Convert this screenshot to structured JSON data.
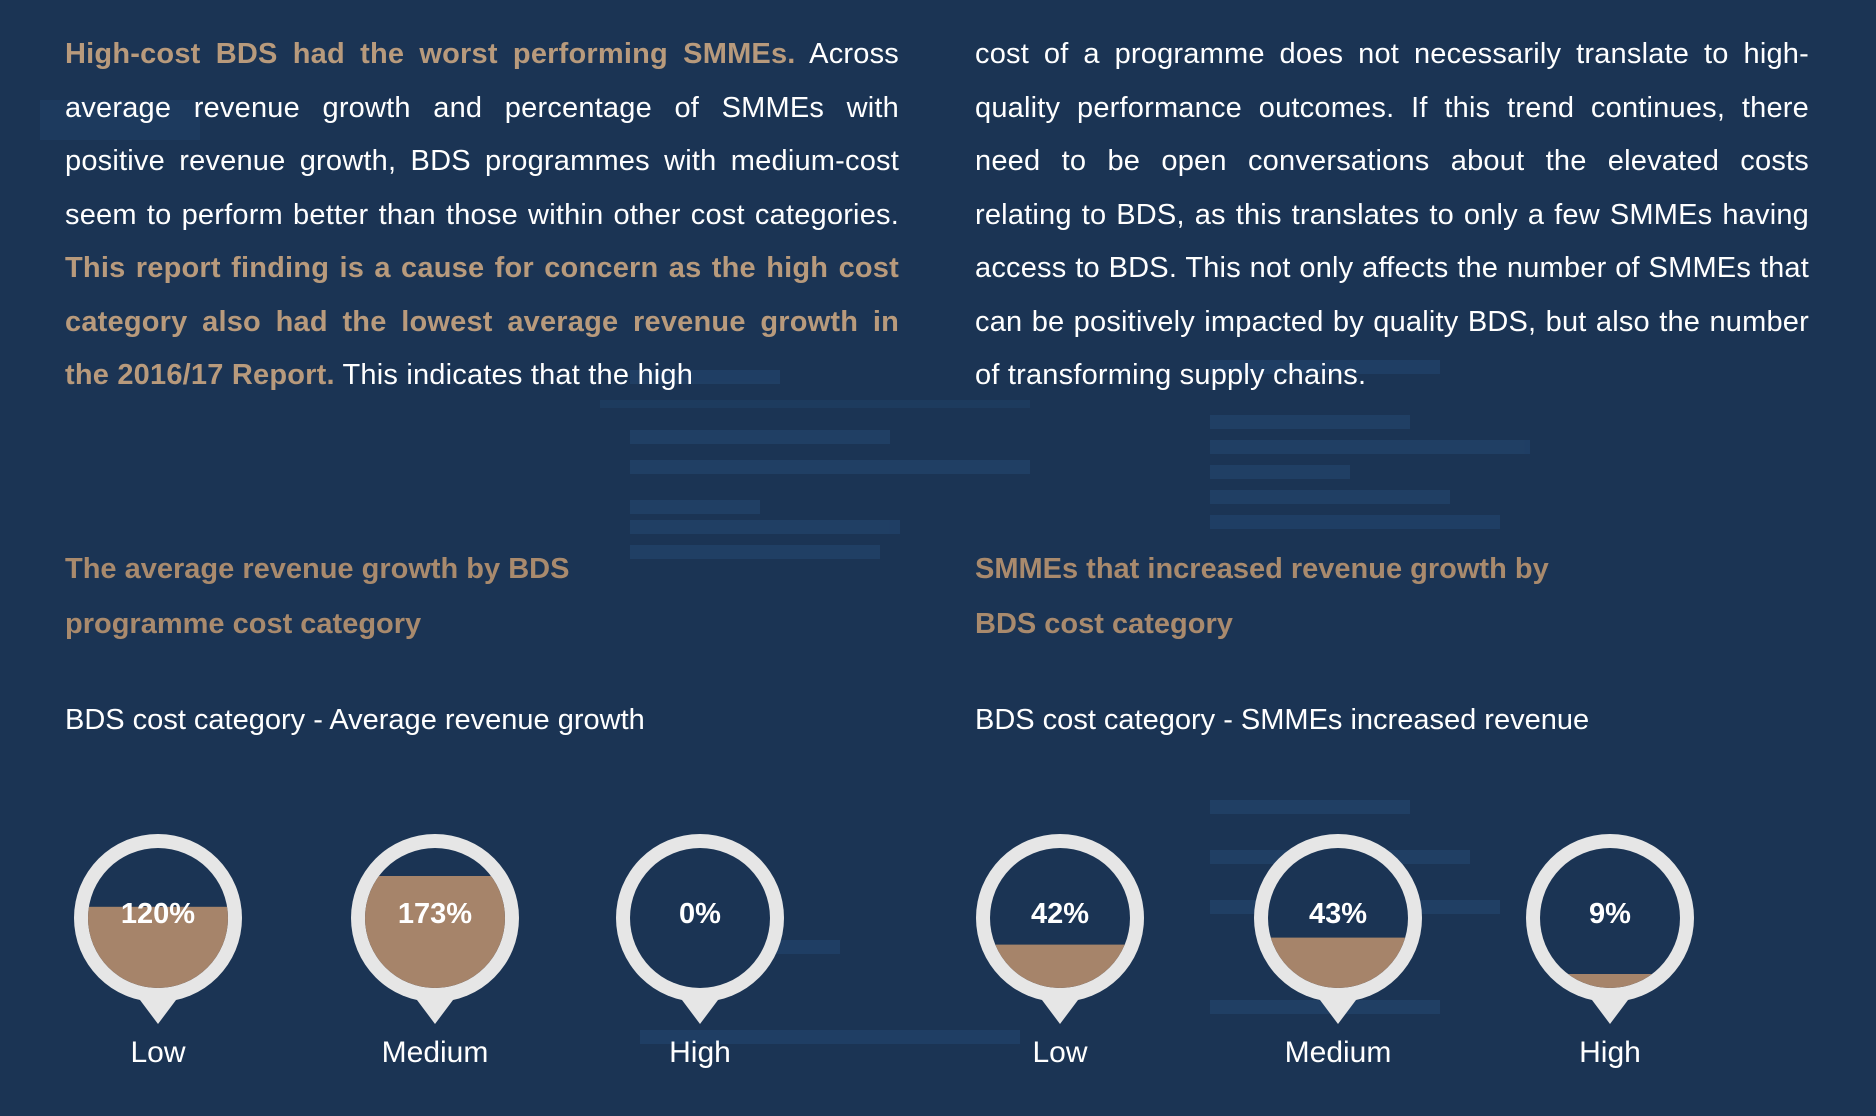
{
  "paragraphs": {
    "left": {
      "highlight_1": "High-cost BDS had the worst performing SMMEs.",
      "text_1": " Across average revenue growth and percentage of SMMEs with positive revenue growth, BDS programmes with medium-cost seem to perform better than those within other cost categories. ",
      "highlight_2": "This report finding is a cause for concern as the high cost category also had the lowest average revenue growth in the 2016/17 Report.",
      "text_2": " This indicates that the high"
    },
    "right": {
      "text": "cost of a programme does not necessarily translate to high-quality performance outcomes. If this trend continues, there need to be open conversations about the elevated costs relating to BDS, as this translates to only a few SMMEs having access to BDS. This not only affects the number of SMMEs that can be positively impacted by quality BDS, but also the number of transforming supply chains."
    }
  },
  "sections": {
    "left": {
      "title": "The average revenue growth by BDS programme cost category",
      "caption": "BDS cost category - Average revenue growth",
      "gauges": [
        {
          "label": "Low",
          "value": "120%",
          "fill": 0.58
        },
        {
          "label": "Medium",
          "value": "173%",
          "fill": 0.8
        },
        {
          "label": "High",
          "value": "0%",
          "fill": 0.0
        }
      ]
    },
    "right": {
      "title": "SMMEs that increased revenue growth by BDS cost category",
      "caption": "BDS cost category - SMMEs increased revenue",
      "gauges": [
        {
          "label": "Low",
          "value": "42%",
          "fill": 0.31
        },
        {
          "label": "Medium",
          "value": "43%",
          "fill": 0.36
        },
        {
          "label": "High",
          "value": "9%",
          "fill": 0.1
        }
      ]
    }
  },
  "colors": {
    "background": "#1b3454",
    "highlight": "#b89a7c",
    "title": "#a98a6d",
    "gauge_ring": "#e6e6e6",
    "gauge_fill": "#a6846a"
  }
}
